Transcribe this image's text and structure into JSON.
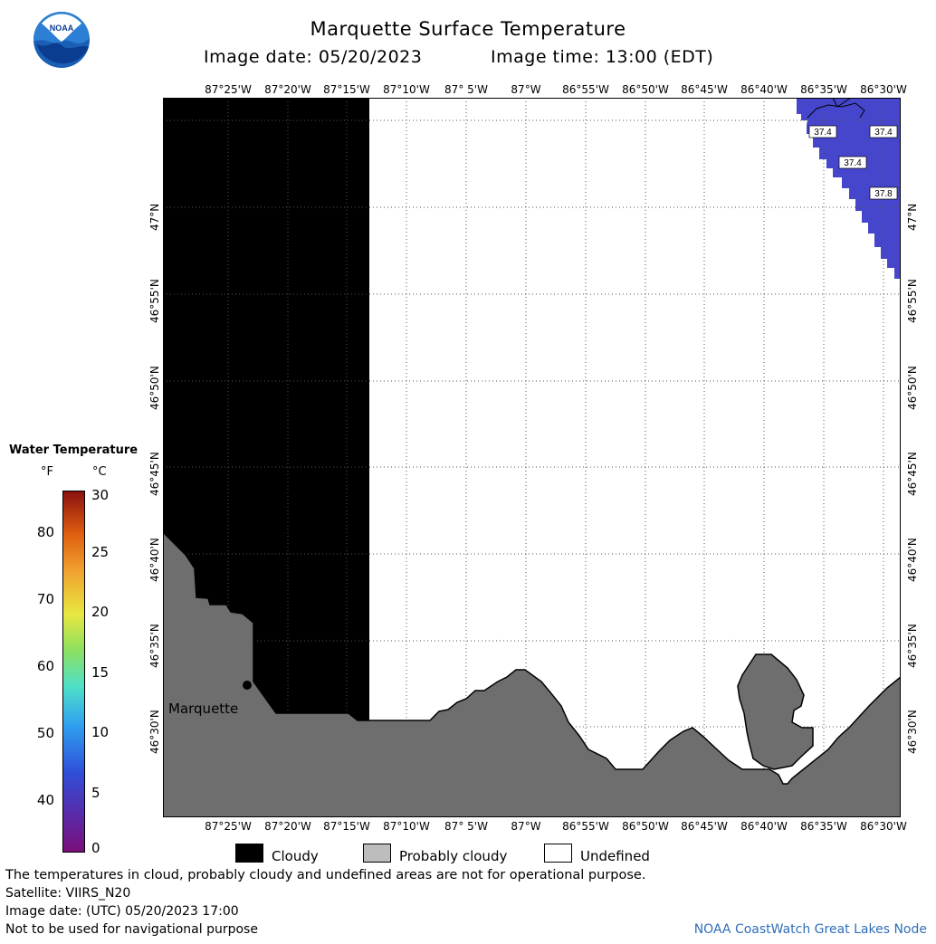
{
  "title": "Marquette Surface Temperature",
  "image_date_label": "Image date: 05/20/2023",
  "image_time_label": "Image time: 13:00 (EDT)",
  "map": {
    "lon_ticks": [
      "87°25'W",
      "87°20'W",
      "87°15'W",
      "87°10'W",
      "87° 5'W",
      "87°W",
      "86°55'W",
      "86°50'W",
      "86°45'W",
      "86°40'W",
      "86°35'W",
      "86°30'W"
    ],
    "lat_ticks": [
      "47°N",
      "46°55'N",
      "46°50'N",
      "46°45'N",
      "46°40'N",
      "46°35'N",
      "46°30'N"
    ],
    "city": "Marquette",
    "temperature_labels": [
      "37.4",
      "37.4",
      "37.4",
      "37.8"
    ],
    "colors": {
      "cloud": "#000000",
      "probably_cloudy": "#6e6e6e",
      "water_37": "#4646cc",
      "grid": "#555555"
    }
  },
  "colorbar": {
    "title": "Water Temperature",
    "unit_f": "°F",
    "unit_c": "°C",
    "f_ticks": [
      "80",
      "70",
      "60",
      "50",
      "40"
    ],
    "c_ticks": [
      "30",
      "25",
      "20",
      "15",
      "10",
      "5",
      "0"
    ]
  },
  "legend": {
    "cloudy": "Cloudy",
    "probably_cloudy": "Probably cloudy",
    "undefined": "Undefined"
  },
  "footer": {
    "disclaimer": "The temperatures in cloud, probably cloudy and undefined areas are not for operational purpose.",
    "satellite": "Satellite: VIIRS_N20",
    "utc_date": "Image date: (UTC) 05/20/2023  17:00",
    "navigation": "Not to be used for navigational purpose",
    "credit": "NOAA CoastWatch Great Lakes Node"
  },
  "logo_text": "NOAA"
}
